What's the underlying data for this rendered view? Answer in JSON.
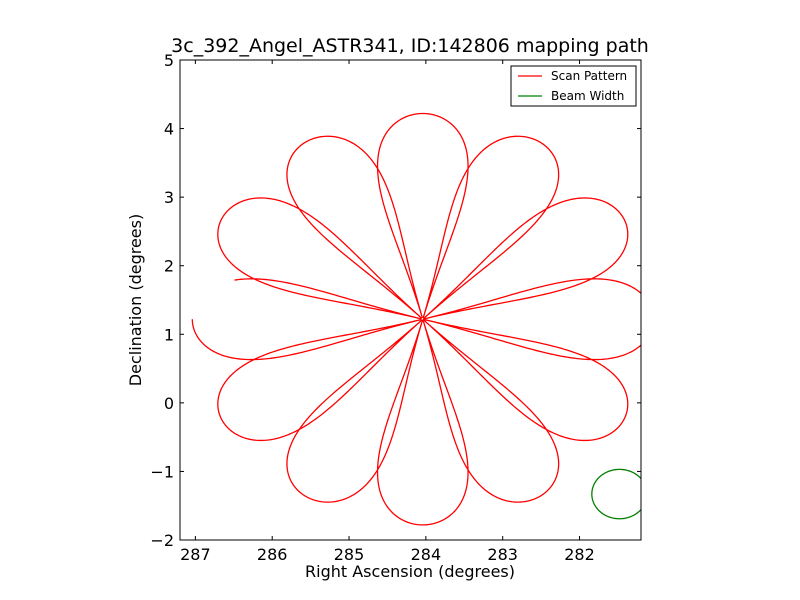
{
  "chart_data": {
    "type": "line",
    "title": "3c_392_Angel_ASTR341, ID:142806 mapping path",
    "xlabel": "Right Ascension (degrees)",
    "ylabel": "Declination (degrees)",
    "xlim": [
      287.2,
      281.2
    ],
    "ylim": [
      -2,
      5
    ],
    "x_inverted": true,
    "xticks": [
      287,
      286,
      285,
      284,
      283,
      282
    ],
    "yticks": [
      -2,
      -1,
      0,
      1,
      2,
      3,
      4,
      5
    ],
    "x_tick_labels": [
      "287",
      "286",
      "285",
      "284",
      "283",
      "282"
    ],
    "y_tick_labels": [
      "−2",
      "−1",
      "0",
      "1",
      "2",
      "3",
      "4",
      "5"
    ],
    "legend_position": "top-right",
    "series": [
      {
        "name": "Scan Pattern",
        "kind": "rose",
        "color": "#ff0000",
        "center": [
          284.04,
          1.22
        ],
        "radius_deg": 3.0,
        "petals": 12,
        "petal_width_factor": 0.29,
        "start_angle_deg": 180,
        "end_angle_deg": 174.5
      },
      {
        "name": "Beam Width",
        "kind": "circle",
        "color": "#008000",
        "center": [
          281.48,
          -1.33
        ],
        "radius_deg": 0.36
      }
    ]
  }
}
